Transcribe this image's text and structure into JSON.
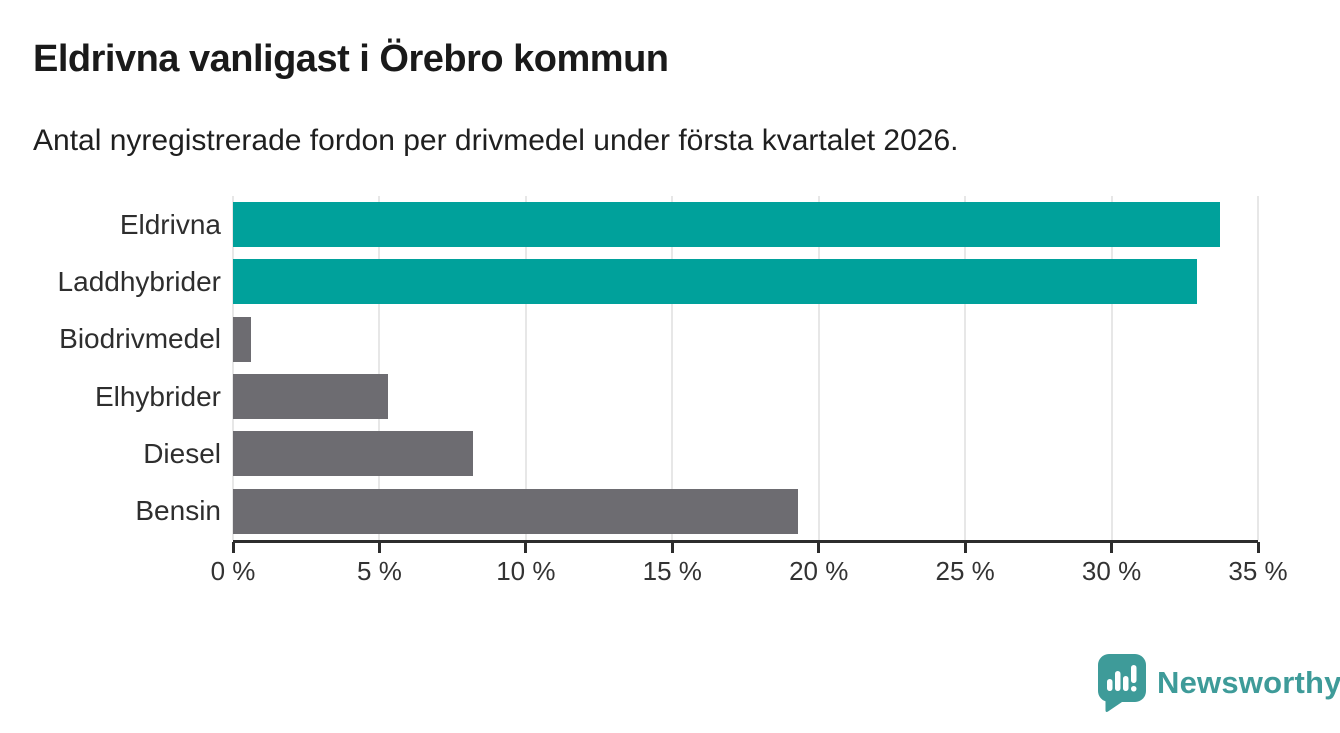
{
  "chart_data": {
    "type": "bar",
    "orientation": "horizontal",
    "title": "Eldrivna vanligast i Örebro kommun",
    "subtitle": "Antal nyregistrerade fordon per drivmedel under första kvartalet 2026.",
    "categories": [
      "Eldrivna",
      "Laddhybrider",
      "Biodrivmedel",
      "Elhybrider",
      "Diesel",
      "Bensin"
    ],
    "values": [
      33.7,
      32.9,
      0.6,
      5.3,
      8.2,
      19.3
    ],
    "unit": "%",
    "xlim": [
      0,
      35
    ],
    "x_tick_step": 5,
    "x_tick_labels": [
      "0 %",
      "5 %",
      "10 %",
      "15 %",
      "20 %",
      "25 %",
      "30 %",
      "35 %"
    ],
    "grid": true,
    "legend": false,
    "highlight_color": "#00a19b",
    "default_color": "#6d6c71",
    "bar_colors": [
      "#00a19b",
      "#00a19b",
      "#6d6c71",
      "#6d6c71",
      "#6d6c71",
      "#6d6c71"
    ],
    "gridline_color": "#e7e7e7",
    "axis_color": "#2d2d2d"
  },
  "footer": {
    "logo_text": "Newsworthy",
    "logo_color": "#3e9b99"
  }
}
